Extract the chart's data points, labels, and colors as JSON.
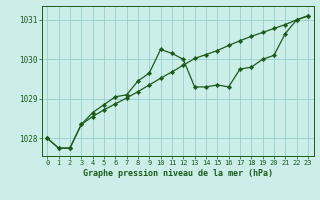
{
  "title": "Graphe pression niveau de la mer (hPa)",
  "background_color": "#cceee8",
  "grid_color": "#99cccc",
  "line_color": "#1a5c1a",
  "x_labels": [
    "0",
    "1",
    "2",
    "3",
    "4",
    "5",
    "6",
    "7",
    "8",
    "9",
    "10",
    "11",
    "12",
    "13",
    "14",
    "15",
    "16",
    "17",
    "18",
    "19",
    "20",
    "21",
    "22",
    "23"
  ],
  "yticks": [
    1028,
    1029,
    1030,
    1031
  ],
  "ylim": [
    1027.55,
    1031.35
  ],
  "xlim": [
    -0.5,
    23.5
  ],
  "series1": [
    1028.0,
    1027.75,
    1027.75,
    1028.35,
    1028.65,
    1028.85,
    1029.05,
    1029.1,
    1029.45,
    1029.65,
    1030.25,
    1030.15,
    1030.0,
    1029.3,
    1029.3,
    1029.35,
    1029.3,
    1029.75,
    1029.8,
    1030.0,
    1030.1,
    1030.65,
    1031.0,
    1031.1
  ],
  "series2": [
    1028.0,
    1027.75,
    1027.75,
    1028.35,
    1028.55,
    1028.72,
    1028.87,
    1029.02,
    1029.18,
    1029.35,
    1029.52,
    1029.68,
    1029.85,
    1030.02,
    1030.12,
    1030.22,
    1030.35,
    1030.47,
    1030.58,
    1030.68,
    1030.78,
    1030.88,
    1031.0,
    1031.1
  ]
}
